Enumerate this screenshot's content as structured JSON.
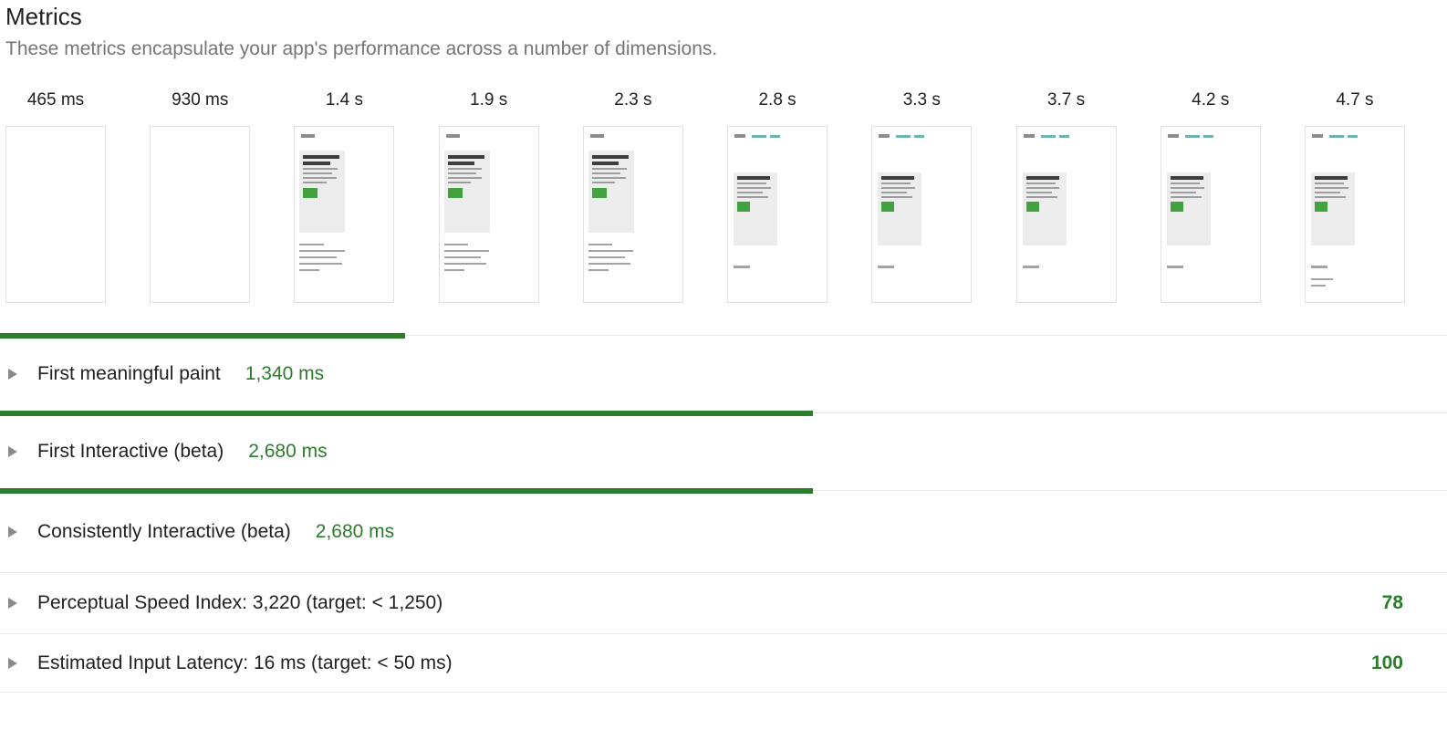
{
  "header": {
    "title": "Metrics",
    "subtitle": "These metrics encapsulate your app's performance across a number of dimensions."
  },
  "filmstrip": {
    "frames": [
      {
        "time": "465 ms",
        "variant": "blank"
      },
      {
        "time": "930 ms",
        "variant": "blank"
      },
      {
        "time": "1.4 s",
        "variant": "partial"
      },
      {
        "time": "1.9 s",
        "variant": "partial"
      },
      {
        "time": "2.3 s",
        "variant": "partial"
      },
      {
        "time": "2.8 s",
        "variant": "loaded"
      },
      {
        "time": "3.3 s",
        "variant": "loaded"
      },
      {
        "time": "3.7 s",
        "variant": "loaded"
      },
      {
        "time": "4.2 s",
        "variant": "loaded"
      },
      {
        "time": "4.7 s",
        "variant": "loaded-more"
      }
    ]
  },
  "metrics": [
    {
      "label": "First meaningful paint",
      "value": "1,340 ms",
      "bar_percent": 28
    },
    {
      "label": "First Interactive (beta)",
      "value": "2,680 ms",
      "bar_percent": 56.2
    },
    {
      "label": "Consistently Interactive (beta)",
      "value": "2,680 ms",
      "bar_percent": 56.2
    },
    {
      "label": "Perceptual Speed Index: 3,220 (target: < 1,250)",
      "score": "78"
    },
    {
      "label": "Estimated Input Latency: 16 ms (target: < 50 ms)",
      "score": "100"
    }
  ],
  "colors": {
    "metric_green": "#2b7d2b",
    "thumbnail_button_green": "#41a33f",
    "thumbnail_teal": "#6db5ae",
    "divider_gray": "#e8e8e8",
    "subtitle_gray": "#757575"
  }
}
